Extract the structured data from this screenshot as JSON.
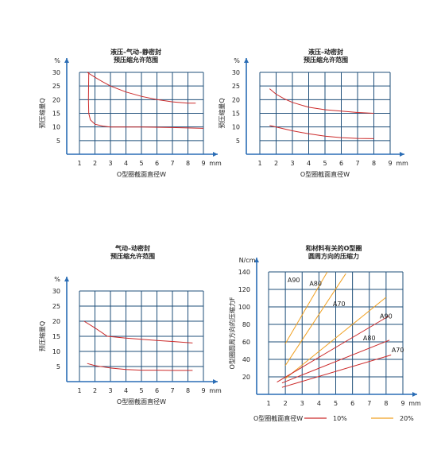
{
  "colors": {
    "axis": "#2a6db5",
    "grid": "#1f4f7a",
    "red": "#cc2a2a",
    "orange": "#f0a020",
    "text": "#222222"
  },
  "chart_data": [
    {
      "type": "line",
      "title": "液压–气动–静密封",
      "subtitle": "预压缩允许范围",
      "ylabel": "预压缩量Q",
      "yunit": "%",
      "xlabel": "O型圈截面直径W",
      "xunit": "mm",
      "xlim": [
        1,
        9
      ],
      "ylim": [
        0,
        30
      ],
      "xticks": [
        "1",
        "2",
        "3",
        "4",
        "5",
        "6",
        "7",
        "8",
        "9"
      ],
      "yticks": [
        "5",
        "10",
        "15",
        "20",
        "25",
        "30"
      ],
      "grid": true,
      "series": [
        {
          "color": "red",
          "points": [
            [
              1.5,
              30
            ],
            [
              2,
              28.2
            ],
            [
              2.5,
              26.5
            ],
            [
              3,
              25
            ],
            [
              4,
              22.8
            ],
            [
              5,
              21.2
            ],
            [
              6,
              20
            ],
            [
              7,
              19.2
            ],
            [
              8,
              18.7
            ],
            [
              8.5,
              18.7
            ]
          ]
        },
        {
          "color": "red",
          "points": [
            [
              1.6,
              30
            ],
            [
              1.58,
              20
            ],
            [
              1.6,
              15
            ],
            [
              1.7,
              12.6
            ],
            [
              2,
              11
            ],
            [
              2.5,
              10.3
            ],
            [
              3,
              10
            ],
            [
              5,
              10
            ],
            [
              7,
              9.8
            ],
            [
              9,
              9.5
            ]
          ]
        }
      ]
    },
    {
      "type": "line",
      "title": "液压–动密封",
      "subtitle": "预压缩允许范围",
      "ylabel": "预压缩量Q",
      "yunit": "%",
      "xlabel": "O型圈截面直径W",
      "xunit": "mm",
      "xlim": [
        1,
        9
      ],
      "ylim": [
        0,
        30
      ],
      "xticks": [
        "1",
        "2",
        "3",
        "4",
        "5",
        "6",
        "7",
        "8",
        "9"
      ],
      "yticks": [
        "5",
        "10",
        "15",
        "20",
        "25",
        "30"
      ],
      "grid": true,
      "series": [
        {
          "color": "red",
          "points": [
            [
              1.6,
              24
            ],
            [
              2,
              22
            ],
            [
              2.5,
              20.3
            ],
            [
              3,
              19
            ],
            [
              4,
              17.2
            ],
            [
              5,
              16.3
            ],
            [
              6,
              15.8
            ],
            [
              7,
              15.3
            ],
            [
              8,
              15
            ]
          ]
        },
        {
          "color": "red",
          "points": [
            [
              1.6,
              10.5
            ],
            [
              2,
              10
            ],
            [
              3,
              8.6
            ],
            [
              4,
              7.5
            ],
            [
              5,
              6.6
            ],
            [
              6,
              6.1
            ],
            [
              7,
              5.8
            ],
            [
              8,
              5.7
            ]
          ]
        }
      ]
    },
    {
      "type": "line",
      "title": "气动–动密封",
      "subtitle": "预压缩允许范围",
      "ylabel": "预压缩量Q",
      "yunit": "%",
      "xlabel": "O型圈截面直径W",
      "xunit": "mm",
      "xlim": [
        1,
        9
      ],
      "ylim": [
        0,
        30
      ],
      "xticks": [
        "1",
        "2",
        "3",
        "4",
        "5",
        "6",
        "7",
        "8",
        "9"
      ],
      "yticks": [
        "5",
        "10",
        "15",
        "20",
        "25",
        "30"
      ],
      "grid": true,
      "series": [
        {
          "color": "red",
          "points": [
            [
              1.3,
              20
            ],
            [
              2,
              17.8
            ],
            [
              2.8,
              15
            ],
            [
              4,
              14.4
            ],
            [
              5,
              14
            ],
            [
              6,
              13.6
            ],
            [
              7,
              13.3
            ],
            [
              8.3,
              12.8
            ]
          ]
        },
        {
          "color": "red",
          "points": [
            [
              1.5,
              6
            ],
            [
              2,
              5.3
            ],
            [
              3,
              4.5
            ],
            [
              4,
              4
            ],
            [
              5,
              3.8
            ],
            [
              6,
              3.8
            ],
            [
              7,
              3.7
            ],
            [
              8.3,
              3.7
            ]
          ]
        }
      ]
    },
    {
      "type": "line",
      "title": "和材料有关的O型圈",
      "subtitle": "圆周方向的压缩力",
      "ylabel": "O型圈圆周方向的压缩力F",
      "yunit": "N/cm",
      "xlabel": "O型圈截面直径W",
      "xunit": "mm",
      "xlim": [
        1,
        9
      ],
      "ylim": [
        0,
        140
      ],
      "xticks": [
        "1",
        "2",
        "3",
        "4",
        "5",
        "6",
        "7",
        "8",
        "9"
      ],
      "yticks": [
        "20",
        "40",
        "60",
        "80",
        "100",
        "120",
        "140"
      ],
      "grid": true,
      "legend": [
        {
          "label": "10%",
          "color": "red"
        },
        {
          "label": "20%",
          "color": "orange"
        }
      ],
      "annotations": [
        {
          "text": "A90",
          "x": 2.5,
          "y": 128
        },
        {
          "text": "A80",
          "x": 3.8,
          "y": 124
        },
        {
          "text": "A70",
          "x": 5.2,
          "y": 101
        },
        {
          "text": "A90",
          "x": 8.0,
          "y": 87
        },
        {
          "text": "A80",
          "x": 7.0,
          "y": 62
        },
        {
          "text": "A70",
          "x": 8.7,
          "y": 48
        }
      ],
      "series": [
        {
          "color": "orange",
          "name": "A90",
          "points": [
            [
              2,
              58
            ],
            [
              4.5,
              140
            ]
          ]
        },
        {
          "color": "orange",
          "name": "A80",
          "points": [
            [
              2,
              33
            ],
            [
              5.6,
              138
            ]
          ]
        },
        {
          "color": "orange",
          "name": "A70",
          "points": [
            [
              2,
              18
            ],
            [
              8,
              111
            ]
          ]
        },
        {
          "color": "red",
          "name": "A90",
          "points": [
            [
              1.5,
              14
            ],
            [
              8.2,
              90
            ]
          ]
        },
        {
          "color": "red",
          "name": "A80",
          "points": [
            [
              1.8,
              13
            ],
            [
              8.2,
              62
            ]
          ]
        },
        {
          "color": "red",
          "name": "A70",
          "points": [
            [
              1.8,
              8
            ],
            [
              8.3,
              45
            ]
          ]
        }
      ]
    }
  ],
  "legend_caption": "O型圈截面直径W"
}
